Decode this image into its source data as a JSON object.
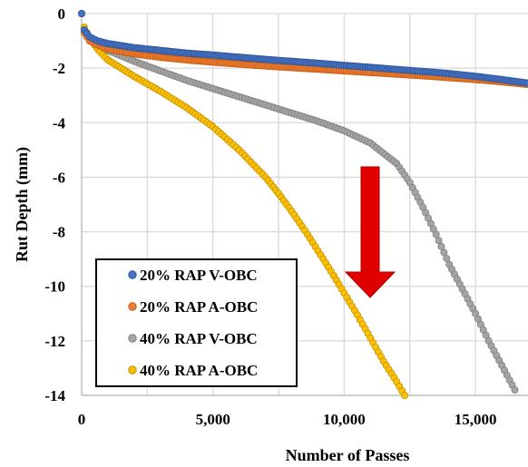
{
  "chart_data": {
    "type": "scatter",
    "title": "",
    "xlabel": "Number of Passes",
    "ylabel": "Rut Depth (mm)",
    "xlim": [
      0,
      17000
    ],
    "ylim": [
      -14,
      0
    ],
    "x_ticks": [
      0,
      5000,
      10000,
      15000
    ],
    "x_tick_labels": [
      "0",
      "5,000",
      "10,000",
      "15,000"
    ],
    "y_ticks": [
      0,
      -2,
      -4,
      -6,
      -8,
      -10,
      -12,
      -14
    ],
    "y_tick_labels": [
      "0",
      "-2",
      "-4",
      "-6",
      "-8",
      "-10",
      "-12",
      "-14"
    ],
    "grid": true,
    "legend_position": "bottom-left",
    "series": [
      {
        "name": "20% RAP V-OBC",
        "color": "#4472c4",
        "x": [
          0,
          100,
          300,
          600,
          1000,
          2000,
          3000,
          4000,
          5000,
          6000,
          7000,
          8000,
          9000,
          10000,
          11000,
          12000,
          13000,
          14000,
          15000,
          16000,
          17000
        ],
        "y": [
          0,
          -0.6,
          -0.85,
          -1.0,
          -1.1,
          -1.25,
          -1.35,
          -1.45,
          -1.52,
          -1.6,
          -1.68,
          -1.75,
          -1.82,
          -1.9,
          -1.97,
          -2.05,
          -2.12,
          -2.2,
          -2.3,
          -2.42,
          -2.55
        ]
      },
      {
        "name": "20% RAP A-OBC",
        "color": "#ed7d31",
        "x": [
          0,
          100,
          300,
          600,
          1000,
          2000,
          3000,
          4000,
          5000,
          6000,
          7000,
          8000,
          9000,
          10000,
          11000,
          12000,
          13000,
          14000,
          15000,
          16000,
          17000
        ],
        "y": [
          0,
          -0.7,
          -1.0,
          -1.15,
          -1.3,
          -1.48,
          -1.6,
          -1.7,
          -1.78,
          -1.85,
          -1.92,
          -1.98,
          -2.04,
          -2.1,
          -2.16,
          -2.22,
          -2.28,
          -2.35,
          -2.42,
          -2.5,
          -2.6
        ]
      },
      {
        "name": "40% RAP V-OBC",
        "color": "#a5a5a5",
        "x": [
          0,
          100,
          300,
          600,
          1000,
          2000,
          3000,
          4000,
          5000,
          6000,
          7000,
          8000,
          9000,
          10000,
          11000,
          12000,
          12500,
          13000,
          13500,
          14000,
          14500,
          15000,
          15500,
          16000,
          16500
        ],
        "y": [
          0,
          -0.6,
          -0.9,
          -1.1,
          -1.35,
          -1.75,
          -2.1,
          -2.45,
          -2.75,
          -3.05,
          -3.35,
          -3.65,
          -3.95,
          -4.3,
          -4.75,
          -5.5,
          -6.2,
          -7.1,
          -8.1,
          -9.2,
          -10.1,
          -11.0,
          -12.0,
          -12.9,
          -13.8
        ]
      },
      {
        "name": "40% RAP A-OBC",
        "color": "#ffc000",
        "x": [
          0,
          100,
          300,
          600,
          1000,
          1500,
          2000,
          3000,
          4000,
          5000,
          6000,
          7000,
          7500,
          8000,
          8500,
          9000,
          9500,
          10000,
          10500,
          11000,
          11500,
          12000,
          12300
        ],
        "y": [
          0,
          -0.5,
          -0.9,
          -1.3,
          -1.7,
          -2.0,
          -2.3,
          -2.85,
          -3.45,
          -4.15,
          -5.0,
          -6.0,
          -6.6,
          -7.25,
          -7.95,
          -8.7,
          -9.45,
          -10.25,
          -11.05,
          -11.9,
          -12.75,
          -13.5,
          -14.0
        ]
      }
    ]
  },
  "annotations": {
    "arrow_color": "#e00000"
  }
}
